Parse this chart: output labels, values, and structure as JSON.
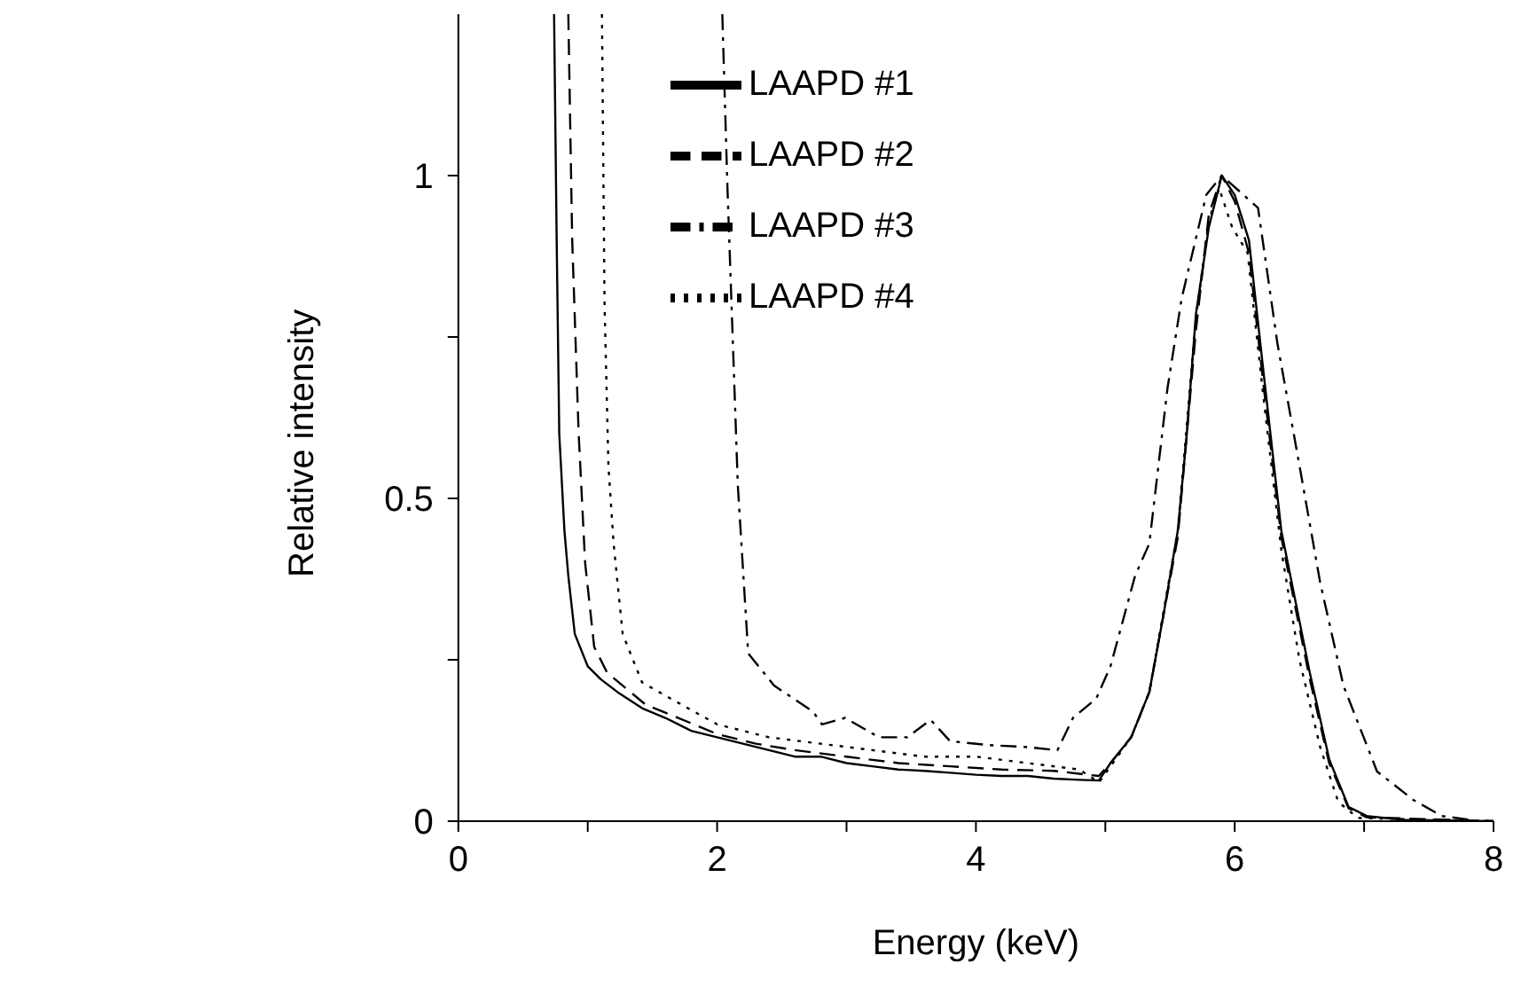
{
  "chart_data": {
    "type": "line",
    "xlabel": "Energy (keV)",
    "ylabel": "Relative intensity",
    "xlim": [
      0,
      8
    ],
    "xticks": [
      0,
      {
        "value": 1,
        "label": null
      },
      2,
      {
        "value": 3,
        "label": null
      },
      4,
      {
        "value": 5,
        "label": null
      },
      6,
      {
        "value": 7,
        "label": null
      },
      8
    ],
    "ylim": [
      0,
      1.25
    ],
    "yticks": [
      0,
      {
        "value": 0.25,
        "label": null
      },
      0.5,
      {
        "value": 0.75,
        "label": null
      },
      1
    ],
    "grid": false,
    "legend": "top",
    "marker": "none",
    "series": [
      {
        "name": "LAAPD #1",
        "color": "#000000",
        "line_style": "solid",
        "x": [
          0.74,
          0.76,
          0.78,
          0.82,
          0.85,
          0.9,
          1.0,
          1.1,
          1.23,
          1.42,
          1.6,
          1.8,
          2.0,
          2.2,
          2.4,
          2.6,
          2.8,
          3.0,
          3.2,
          3.4,
          3.6,
          3.8,
          4.0,
          4.2,
          4.4,
          4.6,
          4.8,
          4.95,
          5.04,
          5.2,
          5.34,
          5.45,
          5.56,
          5.63,
          5.7,
          5.8,
          5.9,
          6.0,
          6.11,
          6.22,
          6.36,
          6.47,
          6.58,
          6.73,
          6.88,
          7.02,
          7.3,
          8
        ],
        "values": [
          1.25,
          0.9,
          0.6,
          0.45,
          0.38,
          0.29,
          0.24,
          0.22,
          0.2,
          0.175,
          0.16,
          0.14,
          0.13,
          0.12,
          0.11,
          0.1,
          0.1,
          0.09,
          0.085,
          0.08,
          0.078,
          0.075,
          0.072,
          0.07,
          0.07,
          0.066,
          0.064,
          0.063,
          0.09,
          0.13,
          0.2,
          0.32,
          0.45,
          0.6,
          0.785,
          0.92,
          1.0,
          0.97,
          0.9,
          0.7,
          0.45,
          0.34,
          0.23,
          0.096,
          0.022,
          0.008,
          0.002,
          0
        ]
      },
      {
        "name": "LAAPD #2",
        "color": "#000000",
        "line_style": "dashed",
        "x": [
          0.85,
          0.88,
          0.93,
          0.98,
          1.05,
          1.15,
          1.27,
          1.45,
          1.7,
          2.0,
          2.3,
          2.6,
          3.0,
          3.4,
          3.8,
          4.2,
          4.6,
          4.95,
          5.04,
          5.2,
          5.34,
          5.56,
          5.7,
          5.8,
          5.9,
          6.0,
          6.11,
          6.22,
          6.36,
          6.58,
          6.73,
          6.88,
          7.02,
          8
        ],
        "values": [
          1.25,
          0.9,
          0.6,
          0.4,
          0.27,
          0.23,
          0.21,
          0.18,
          0.16,
          0.135,
          0.12,
          0.11,
          0.1,
          0.09,
          0.085,
          0.08,
          0.078,
          0.07,
          0.09,
          0.13,
          0.2,
          0.44,
          0.76,
          0.94,
          1.0,
          0.96,
          0.88,
          0.68,
          0.44,
          0.22,
          0.09,
          0.02,
          0.006,
          0
        ]
      },
      {
        "name": "LAAPD #3",
        "color": "#000000",
        "line_style": "dashdot",
        "x": [
          2.04,
          2.08,
          2.16,
          2.24,
          2.44,
          2.74,
          2.81,
          2.99,
          3.25,
          3.47,
          3.65,
          3.8,
          4.09,
          4.38,
          4.63,
          4.75,
          4.93,
          5.04,
          5.23,
          5.34,
          5.48,
          5.59,
          5.78,
          5.9,
          6.18,
          6.33,
          6.51,
          6.66,
          6.84,
          7.1,
          7.38,
          7.6,
          7.9,
          8
        ],
        "values": [
          1.25,
          0.98,
          0.52,
          0.26,
          0.21,
          0.17,
          0.15,
          0.16,
          0.13,
          0.13,
          0.157,
          0.124,
          0.118,
          0.115,
          0.11,
          0.16,
          0.19,
          0.24,
          0.38,
          0.43,
          0.67,
          0.81,
          0.97,
          1.0,
          0.95,
          0.74,
          0.54,
          0.37,
          0.21,
          0.077,
          0.033,
          0.008,
          0,
          0
        ]
      },
      {
        "name": "LAAPD #4",
        "color": "#000000",
        "line_style": "dotted",
        "x": [
          1.11,
          1.13,
          1.16,
          1.2,
          1.27,
          1.42,
          1.64,
          2.0,
          2.4,
          2.8,
          3.2,
          3.6,
          4.0,
          4.4,
          4.8,
          4.95,
          5.04,
          5.2,
          5.34,
          5.56,
          5.7,
          5.8,
          5.88,
          5.98,
          6.1,
          6.22,
          6.36,
          6.5,
          6.66,
          6.8,
          6.95,
          8
        ],
        "values": [
          1.25,
          0.8,
          0.55,
          0.43,
          0.29,
          0.215,
          0.19,
          0.15,
          0.13,
          0.12,
          0.11,
          0.1,
          0.1,
          0.09,
          0.08,
          0.06,
          0.085,
          0.13,
          0.2,
          0.45,
          0.78,
          0.93,
          0.98,
          0.92,
          0.88,
          0.66,
          0.42,
          0.25,
          0.115,
          0.03,
          0.005,
          0
        ]
      }
    ]
  }
}
